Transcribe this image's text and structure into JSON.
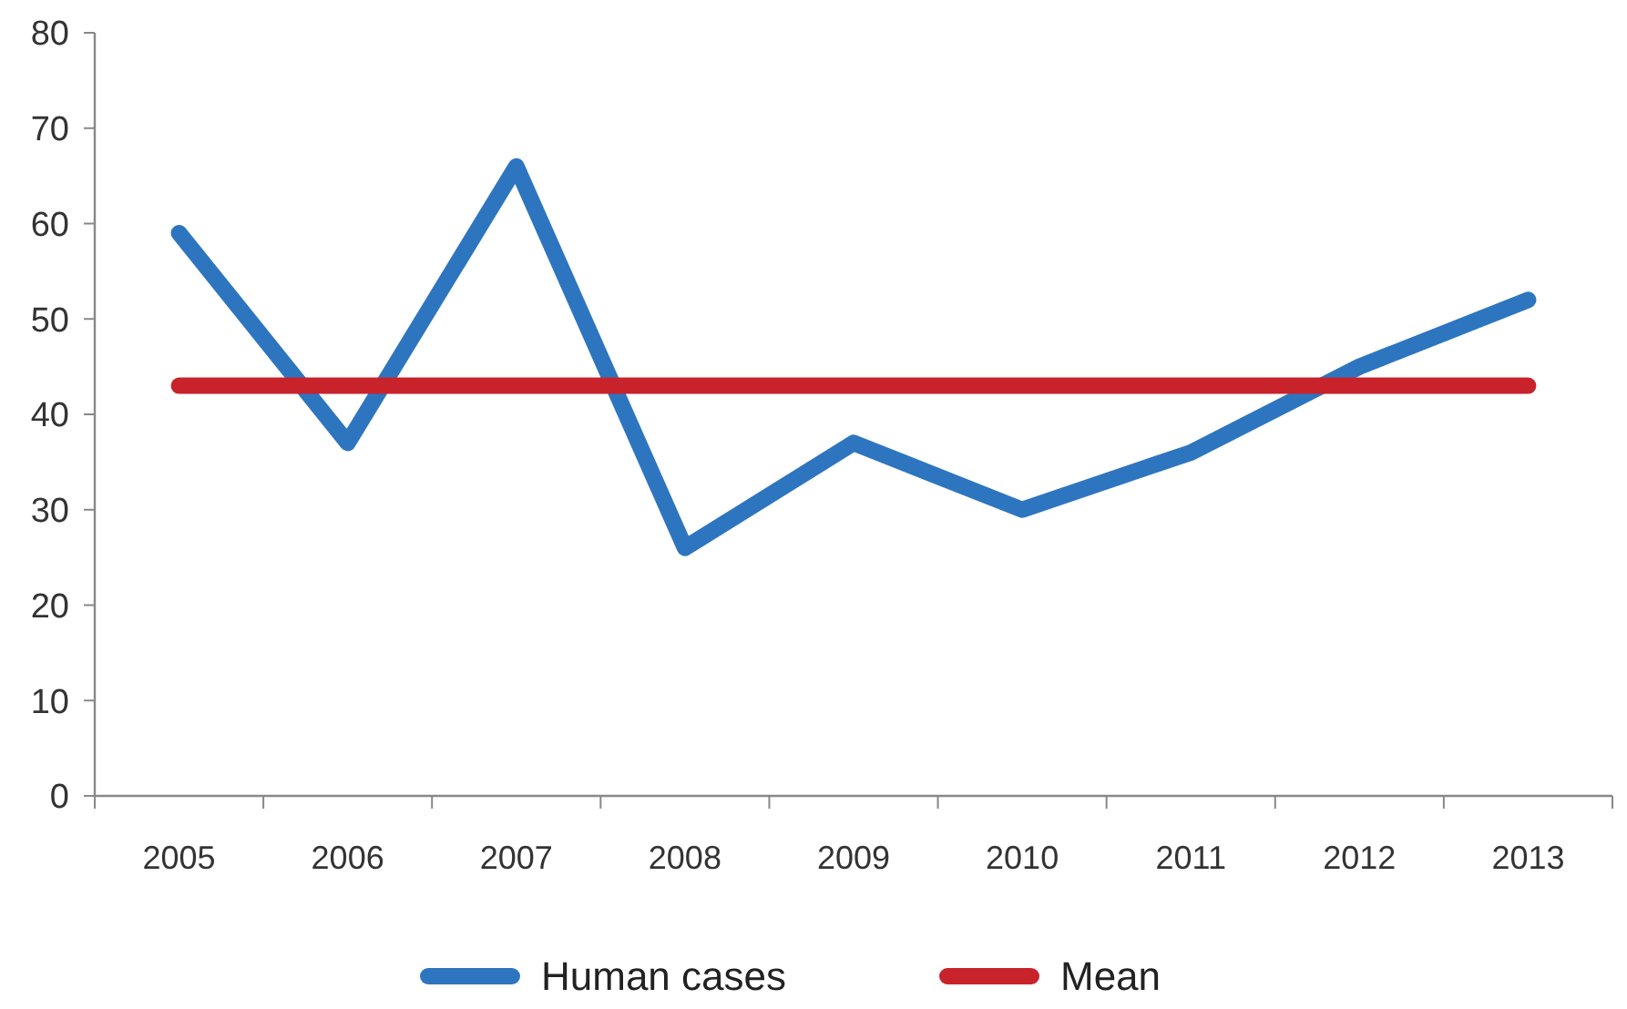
{
  "chart_data": {
    "type": "line",
    "categories": [
      "2005",
      "2006",
      "2007",
      "2008",
      "2009",
      "2010",
      "2011",
      "2012",
      "2013"
    ],
    "series": [
      {
        "name": "Human cases",
        "color": "#2e75c0",
        "values": [
          59,
          37,
          66,
          26,
          37,
          30,
          36,
          45,
          52
        ]
      },
      {
        "name": "Mean",
        "color": "#c8222b",
        "values": [
          43,
          43,
          43,
          43,
          43,
          43,
          43,
          43,
          43
        ]
      }
    ],
    "ylim": [
      0,
      80
    ],
    "yticks": [
      0,
      10,
      20,
      30,
      40,
      50,
      60,
      70,
      80
    ],
    "legend": "bottom",
    "grid": false,
    "marker": "none",
    "line_style": "solid"
  }
}
